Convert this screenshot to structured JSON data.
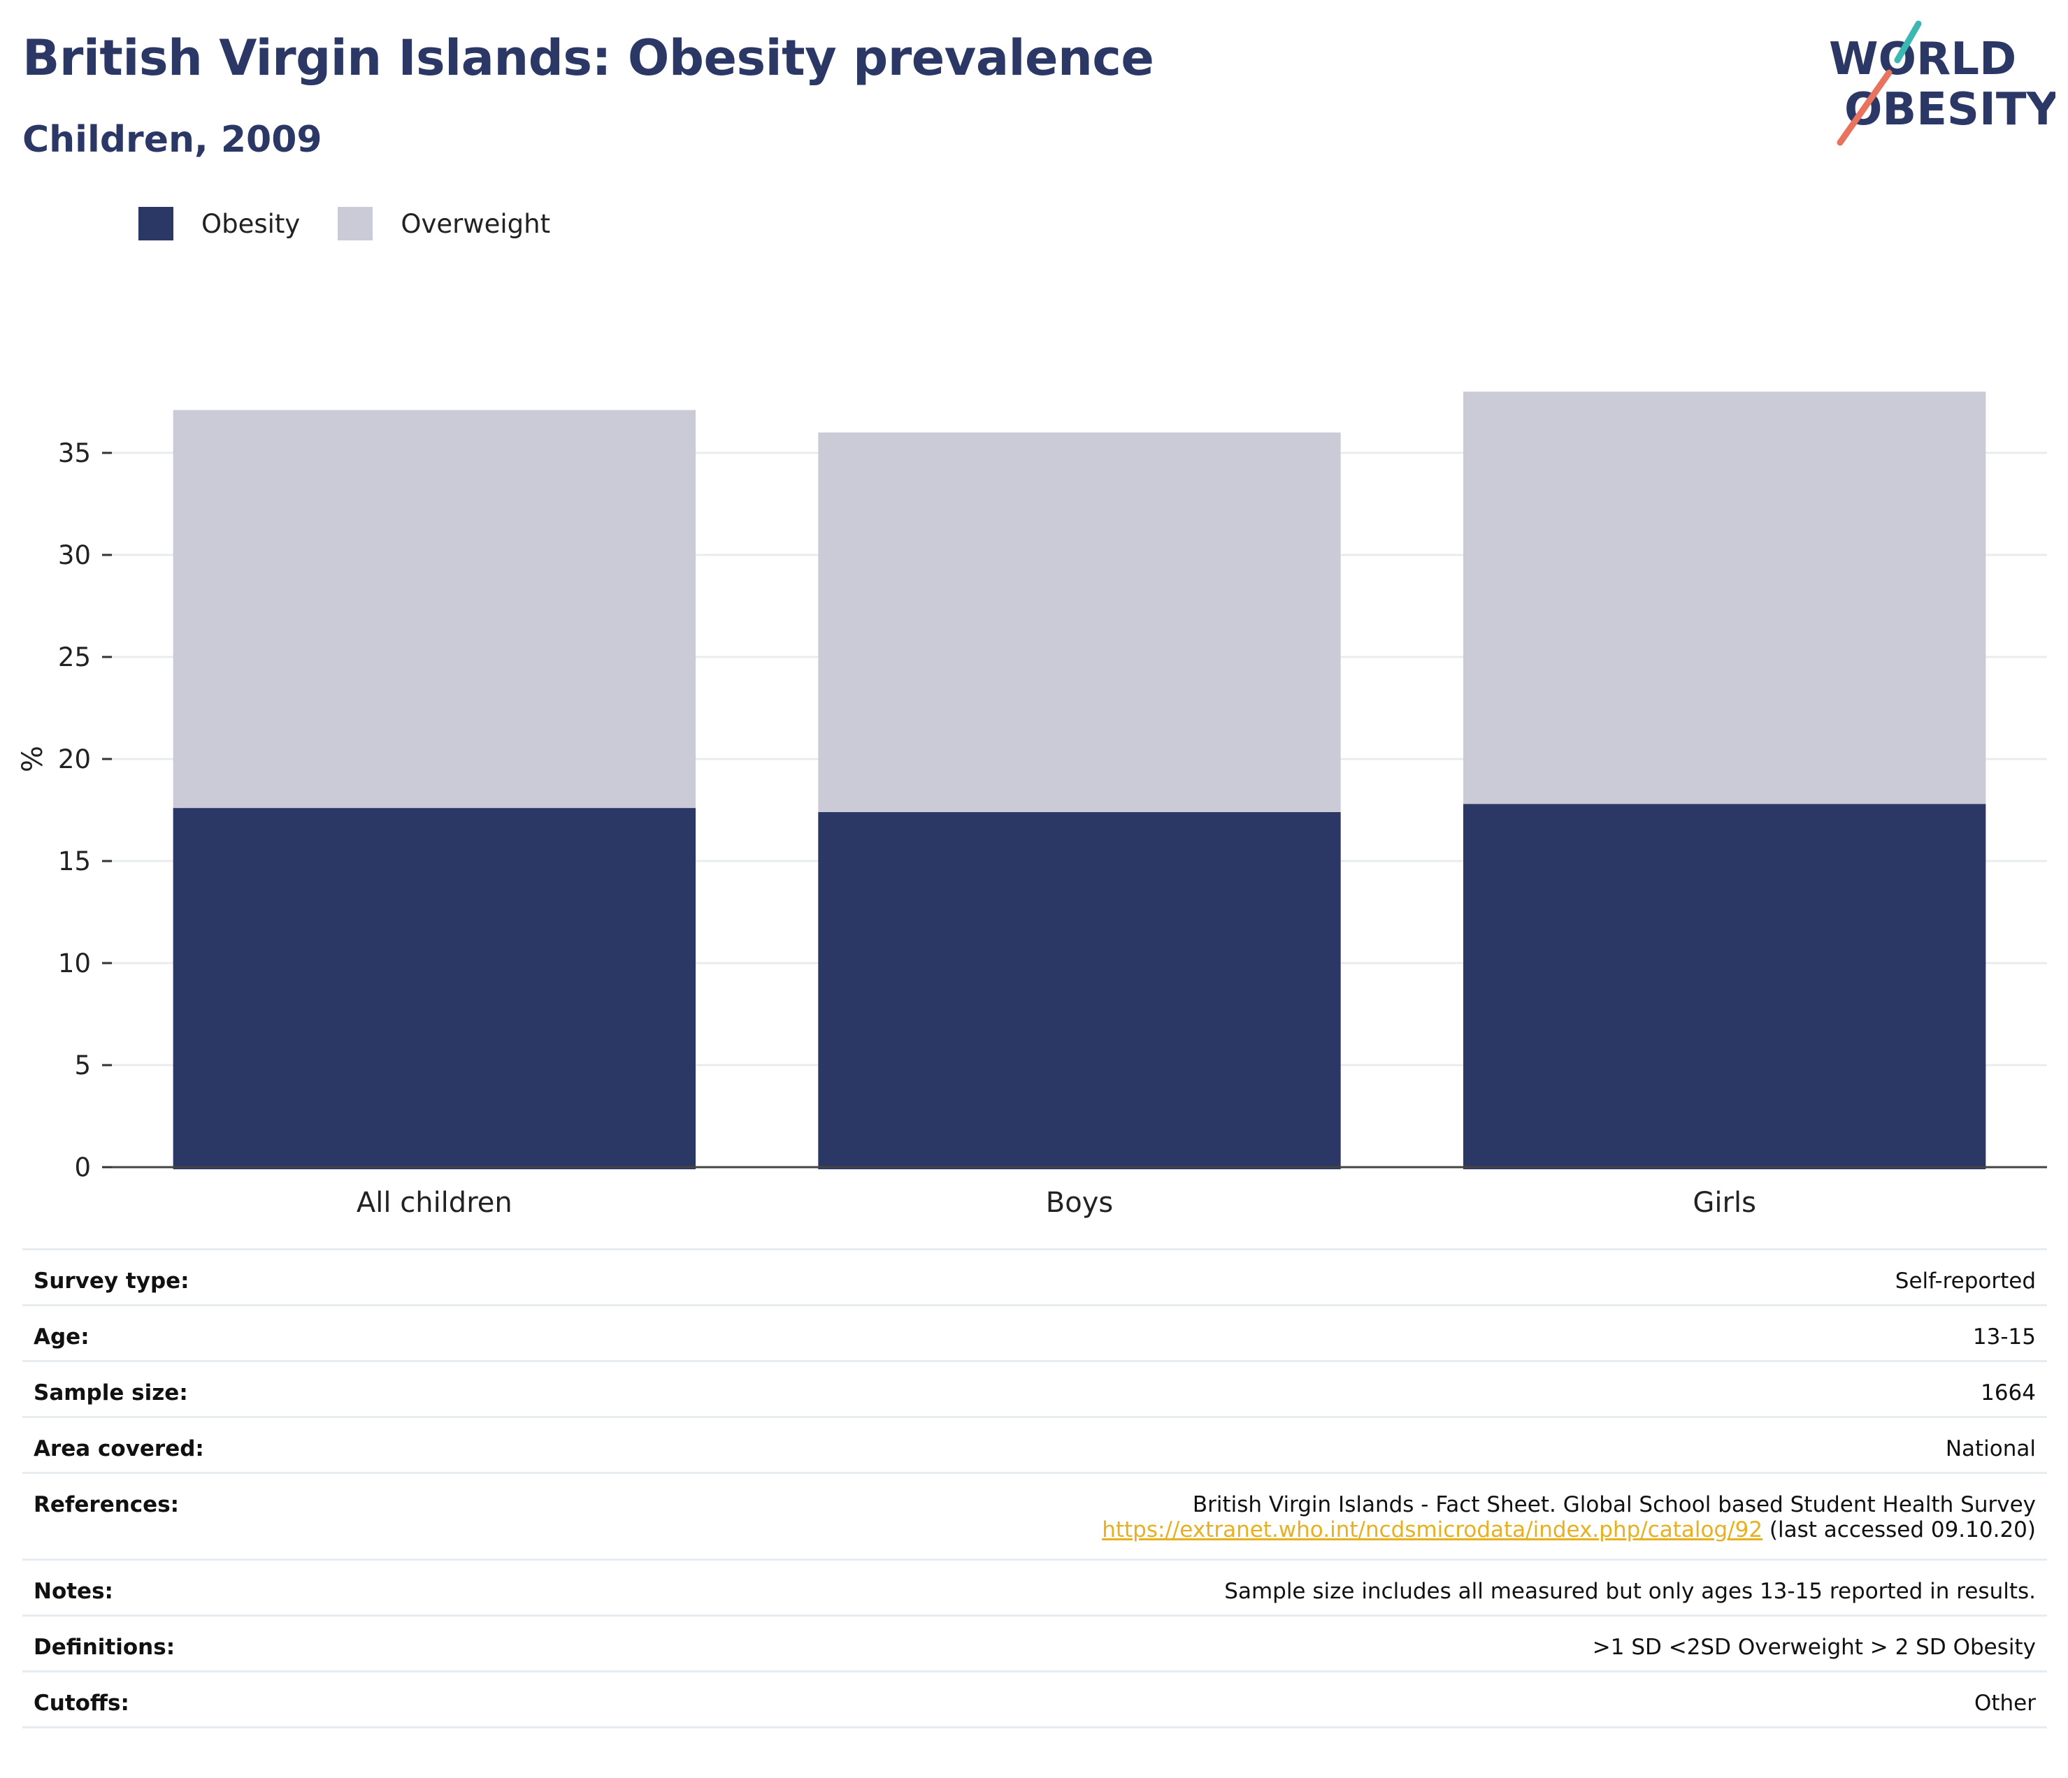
{
  "header": {
    "title": "British Virgin Islands: Obesity prevalence",
    "subtitle": "Children, 2009"
  },
  "logo": {
    "line1": "WORLD",
    "line2": "OBESITY",
    "colors": {
      "text": "#2b3765",
      "slash_top": "#3bb8b2",
      "slash_bottom": "#e8735f"
    }
  },
  "legend": [
    {
      "label": "Obesity",
      "color": "#2b3765"
    },
    {
      "label": "Overweight",
      "color": "#cacbd6"
    }
  ],
  "chart_data": {
    "type": "bar",
    "stacked": true,
    "categories": [
      "All children",
      "Boys",
      "Girls"
    ],
    "series": [
      {
        "name": "Obesity",
        "color": "#2b3765",
        "values": [
          17.6,
          17.4,
          17.8
        ]
      },
      {
        "name": "Overweight",
        "color": "#cacbd6",
        "values": [
          19.5,
          18.6,
          20.2
        ]
      }
    ],
    "ylabel": "%",
    "xlabel": "",
    "ylim": [
      0,
      38
    ],
    "yticks": [
      0,
      5,
      10,
      15,
      20,
      25,
      30,
      35
    ],
    "grid": true,
    "legend_position": "top-left"
  },
  "info": {
    "survey_type": {
      "label": "Survey type:",
      "value": "Self-reported"
    },
    "age": {
      "label": "Age:",
      "value": "13-15"
    },
    "sample_size": {
      "label": "Sample size:",
      "value": "1664"
    },
    "area_covered": {
      "label": "Area covered:",
      "value": "National"
    },
    "references": {
      "label": "References:",
      "line1": "British Virgin Islands - Fact Sheet. Global School based Student Health Survey",
      "link": "https://extranet.who.int/ncdsmicrodata/index.php/catalog/92",
      "suffix": " (last accessed 09.10.20)"
    },
    "notes": {
      "label": "Notes:",
      "value": "Sample size includes all measured but only ages 13-15 reported in results."
    },
    "definitions": {
      "label": "Definitions:",
      "value": ">1 SD <2SD Overweight > 2 SD Obesity"
    },
    "cutoffs": {
      "label": "Cutoffs:",
      "value": "Other"
    }
  }
}
